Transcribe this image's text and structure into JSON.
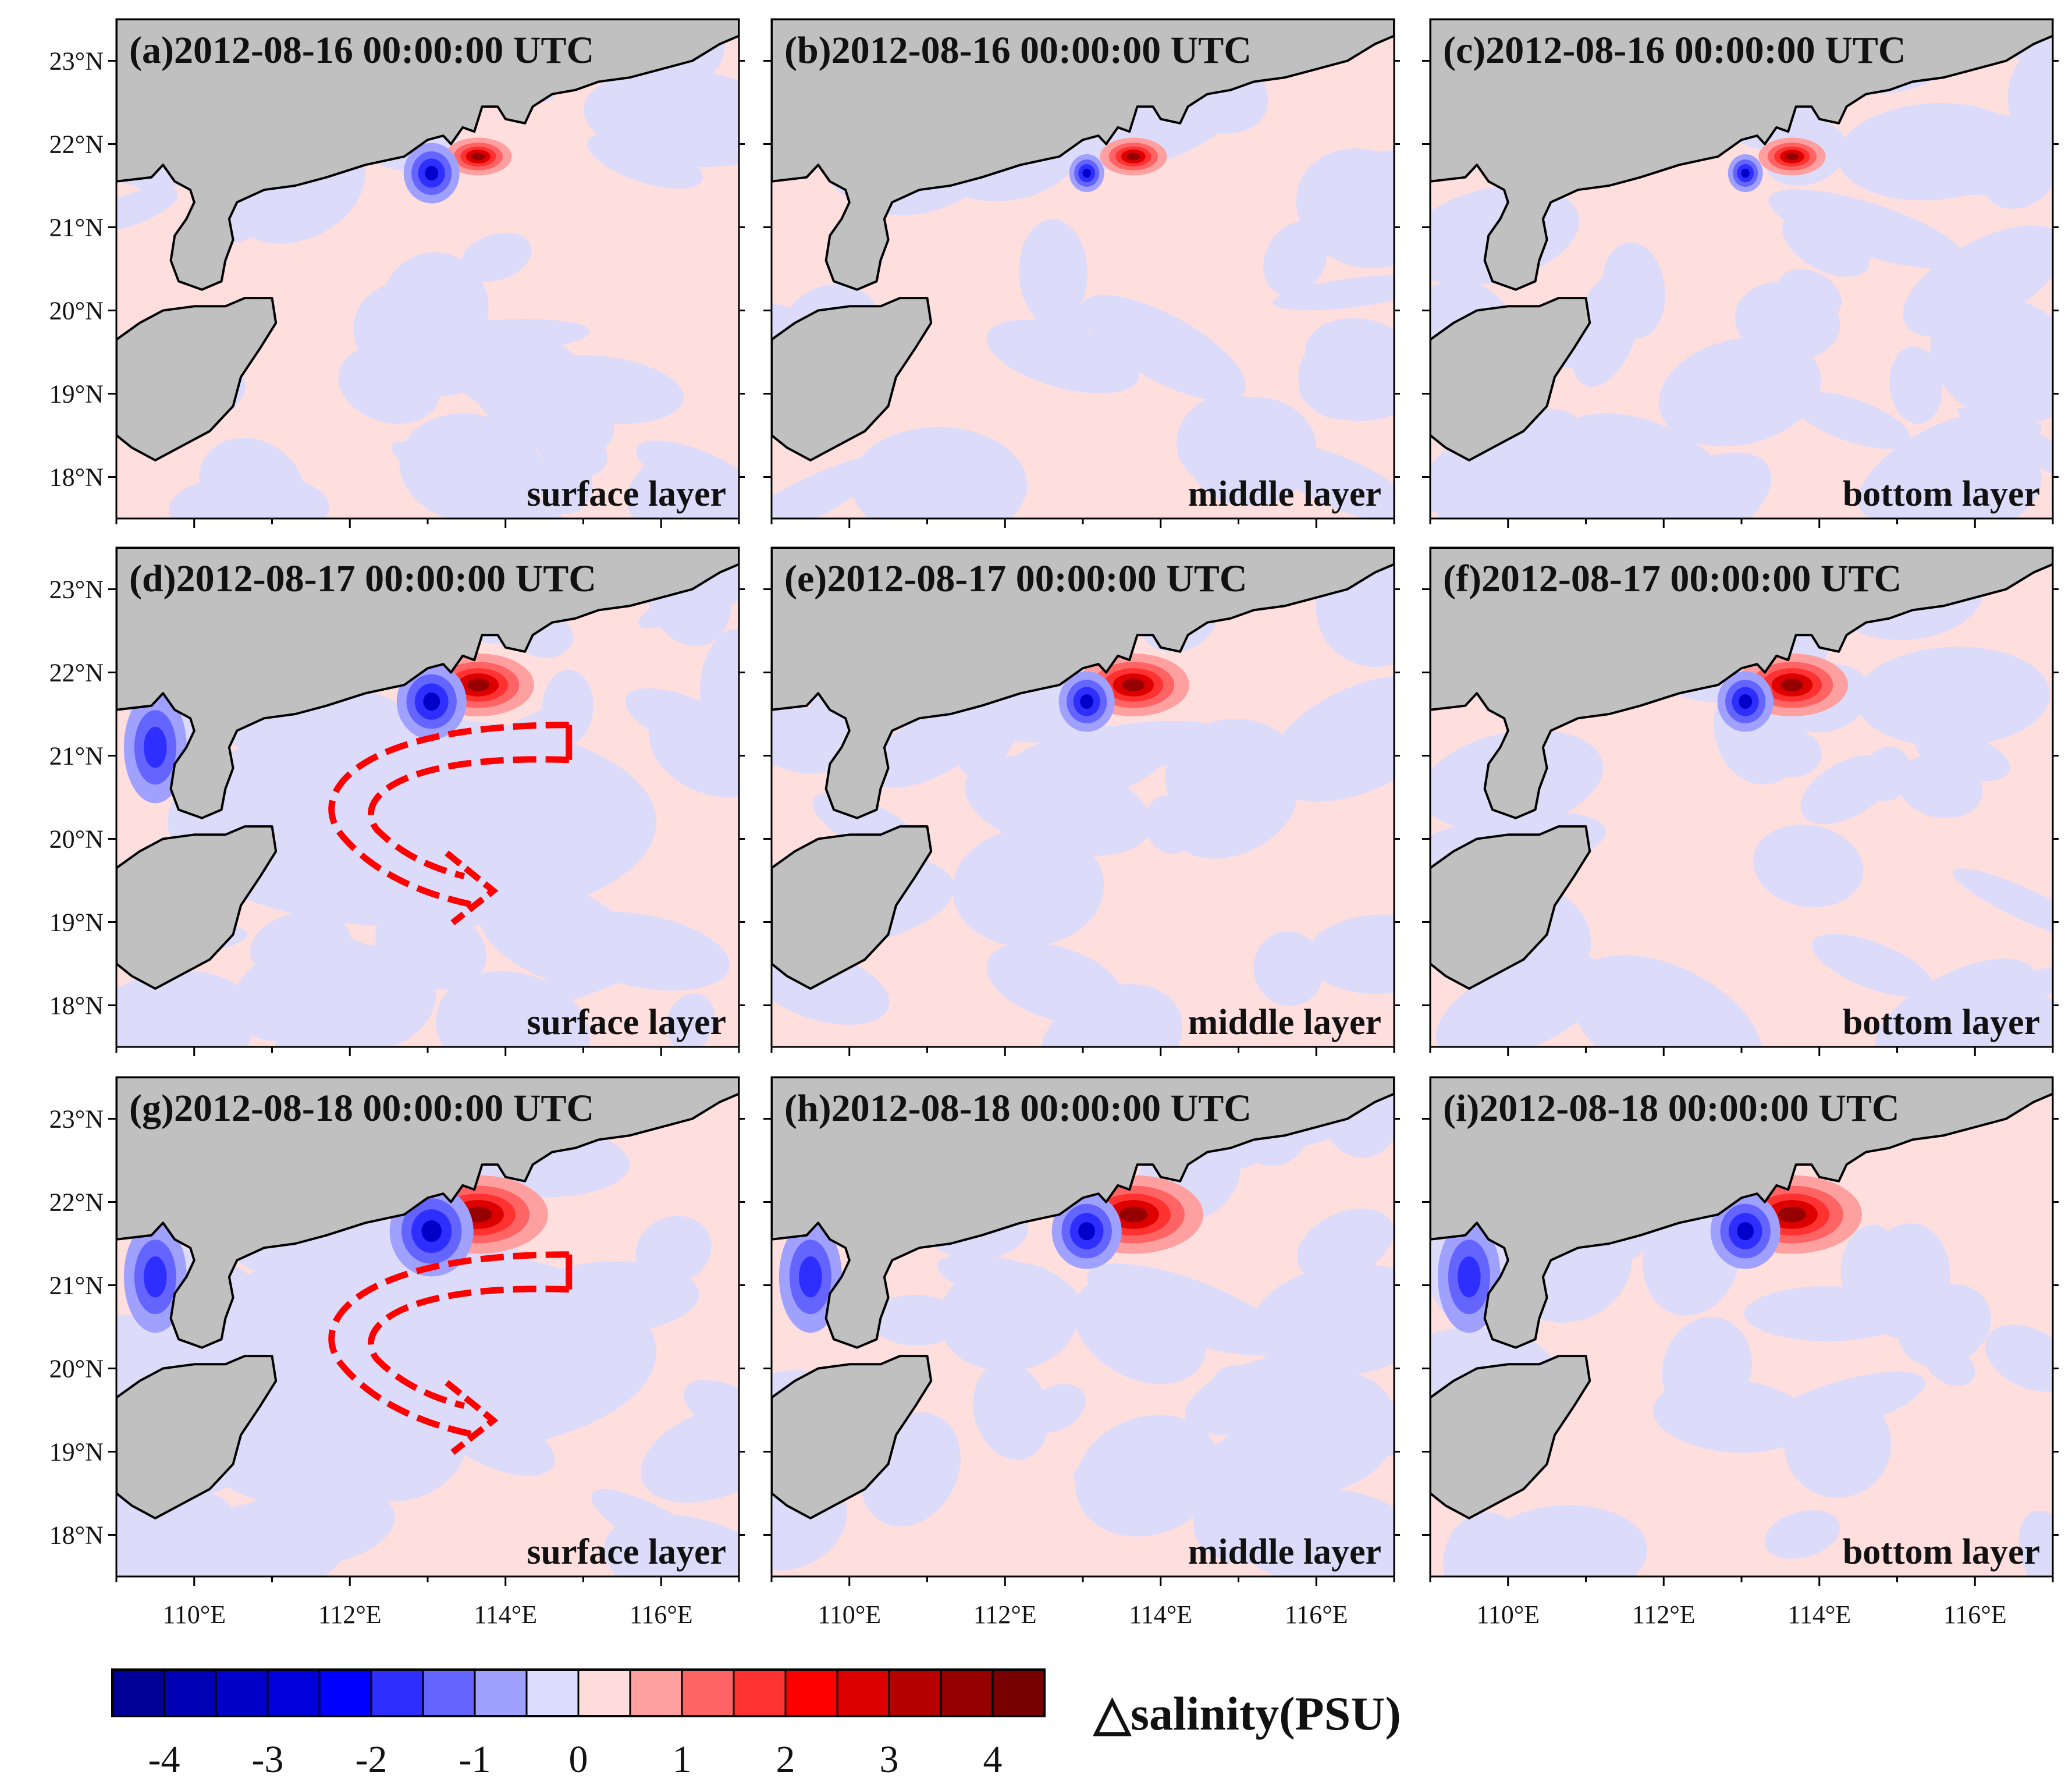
{
  "panels": [
    {
      "id": "a",
      "title": "(a)2012-08-16 00:00:00 UTC",
      "layer": "surface layer",
      "arrow": false
    },
    {
      "id": "b",
      "title": "(b)2012-08-16 00:00:00 UTC",
      "layer": "middle layer",
      "arrow": false
    },
    {
      "id": "c",
      "title": "(c)2012-08-16 00:00:00 UTC",
      "layer": "bottom layer",
      "arrow": false
    },
    {
      "id": "d",
      "title": "(d)2012-08-17 00:00:00 UTC",
      "layer": "surface layer",
      "arrow": true
    },
    {
      "id": "e",
      "title": "(e)2012-08-17 00:00:00 UTC",
      "layer": "middle layer",
      "arrow": false
    },
    {
      "id": "f",
      "title": "(f)2012-08-17 00:00:00 UTC",
      "layer": "bottom layer",
      "arrow": false
    },
    {
      "id": "g",
      "title": "(g)2012-08-18 00:00:00 UTC",
      "layer": "surface layer",
      "arrow": true
    },
    {
      "id": "h",
      "title": "(h)2012-08-18 00:00:00 UTC",
      "layer": "middle layer",
      "arrow": false
    },
    {
      "id": "i",
      "title": "(i)2012-08-18 00:00:00 UTC",
      "layer": "bottom layer",
      "arrow": false
    }
  ],
  "lat_ticks": [
    "23°N",
    "22°N",
    "21°N",
    "20°N",
    "19°N",
    "18°N"
  ],
  "lon_ticks": [
    "110°E",
    "112°E",
    "114°E",
    "116°E"
  ],
  "colorbar": {
    "title": "△salinity(PSU)",
    "labels": [
      "-4",
      "-3",
      "-2",
      "-1",
      "0",
      "1",
      "2",
      "3",
      "4"
    ],
    "colors": [
      "#000096",
      "#0000b4",
      "#0000c8",
      "#0000dc",
      "#0000ff",
      "#2e2eff",
      "#6464ff",
      "#a0a0ff",
      "#dcdcff",
      "#ffdcdc",
      "#ffa0a0",
      "#ff6464",
      "#ff3232",
      "#ff0000",
      "#dc0000",
      "#b40000",
      "#960000",
      "#780000"
    ]
  },
  "colors": {
    "land": "#c0c0c0",
    "sea_positive": "#ffdede",
    "sea_negative": "#dcdcfa",
    "arrow": "#ff0000"
  }
}
